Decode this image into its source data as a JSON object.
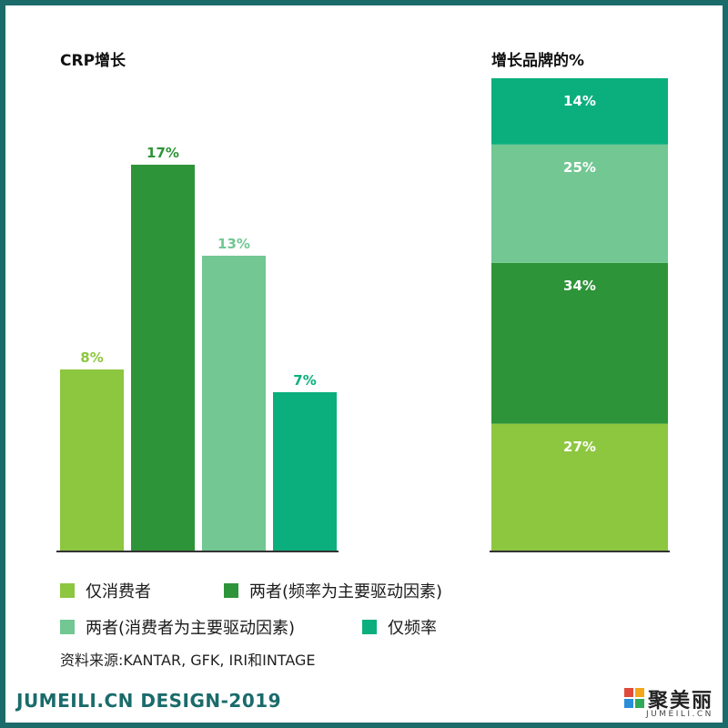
{
  "chart_data": [
    {
      "type": "bar",
      "title": "CRP增长",
      "categories": [
        "仅消费者",
        "两者(频率为主要驱动因素)",
        "两者(消费者为主要驱动因素)",
        "仅频率"
      ],
      "values": [
        8,
        17,
        13,
        7
      ],
      "labels": [
        "8%",
        "17%",
        "13%",
        "7%"
      ],
      "colors": [
        "#8dc63f",
        "#2e9439",
        "#72c793",
        "#0aaf7d"
      ],
      "ylim": [
        0,
        20
      ]
    },
    {
      "type": "bar",
      "stacked": true,
      "title": "增长品牌的%",
      "categories": [
        "仅消费者",
        "两者(频率为主要驱动因素)",
        "两者(消费者为主要驱动因素)",
        "仅频率"
      ],
      "values": [
        27,
        34,
        25,
        14
      ],
      "labels": [
        "27%",
        "34%",
        "25%",
        "14%"
      ],
      "colors": [
        "#8dc63f",
        "#2e9439",
        "#72c793",
        "#0aaf7d"
      ],
      "ylim": [
        0,
        100
      ]
    }
  ],
  "legend": [
    {
      "label": "仅消费者",
      "color": "#8dc63f"
    },
    {
      "label": "两者(频率为主要驱动因素)",
      "color": "#2e9439"
    },
    {
      "label": "两者(消费者为主要驱动因素)",
      "color": "#72c793"
    },
    {
      "label": "仅频率",
      "color": "#0aaf7d"
    }
  ],
  "source": "资料来源:KANTAR, GFK, IRI和INTAGE",
  "footer": "JUMEILI.CN DESIGN-2019",
  "logo": {
    "cn": "聚美丽",
    "en": "JUMEILI.CN"
  },
  "watermark": "JUMEILI.CN"
}
